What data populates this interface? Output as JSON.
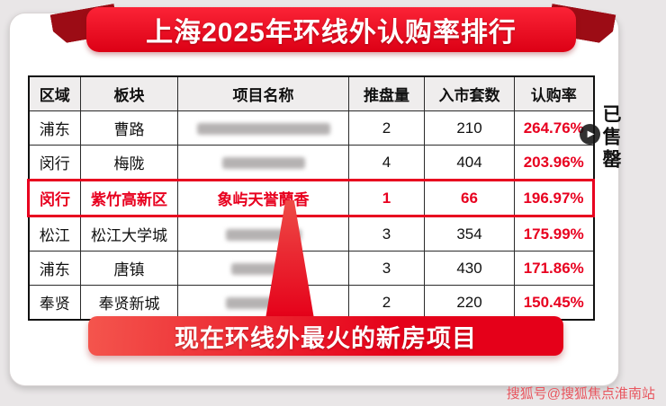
{
  "banner": {
    "title": "上海2025年环线外认购率排行"
  },
  "table": {
    "headers": [
      "区域",
      "板块",
      "项目名称",
      "推盘量",
      "入市套数",
      "认购率"
    ],
    "rows": [
      {
        "region": "浦东",
        "area": "曹路",
        "project": "",
        "redacted": true,
        "blob_width": 148,
        "launches": "2",
        "units": "210",
        "rate": "264.76%",
        "highlight": false,
        "sold_out_group": true,
        "group_last": false
      },
      {
        "region": "闵行",
        "area": "梅陇",
        "project": "",
        "redacted": true,
        "blob_width": 92,
        "launches": "4",
        "units": "404",
        "rate": "203.96%",
        "highlight": false,
        "sold_out_group": true,
        "group_last": true
      },
      {
        "region": "闵行",
        "area": "紫竹高新区",
        "project": "象屿天誉蘭香",
        "redacted": false,
        "blob_width": 0,
        "launches": "1",
        "units": "66",
        "rate": "196.97%",
        "highlight": true,
        "sold_out_group": false,
        "group_last": false
      },
      {
        "region": "松江",
        "area": "松江大学城",
        "project": "",
        "redacted": true,
        "blob_width": 84,
        "launches": "3",
        "units": "354",
        "rate": "175.99%",
        "highlight": false,
        "sold_out_group": false,
        "group_last": false
      },
      {
        "region": "浦东",
        "area": "唐镇",
        "project": "",
        "redacted": true,
        "blob_width": 72,
        "launches": "3",
        "units": "430",
        "rate": "171.86%",
        "highlight": false,
        "sold_out_group": false,
        "group_last": false
      },
      {
        "region": "奉贤",
        "area": "奉贤新城",
        "project": "",
        "redacted": true,
        "blob_width": 84,
        "launches": "2",
        "units": "220",
        "rate": "150.45%",
        "highlight": false,
        "sold_out_group": false,
        "group_last": false
      }
    ]
  },
  "chart_data": {
    "type": "table",
    "title": "上海2025年环线外认购率排行",
    "columns": [
      "区域",
      "板块",
      "项目名称",
      "推盘量",
      "入市套数",
      "认购率"
    ],
    "rows": [
      [
        "浦东",
        "曹路",
        "",
        2,
        210,
        "264.76%"
      ],
      [
        "闵行",
        "梅陇",
        "",
        4,
        404,
        "203.96%"
      ],
      [
        "闵行",
        "紫竹高新区",
        "象屿天誉蘭香",
        1,
        66,
        "196.97%"
      ],
      [
        "松江",
        "松江大学城",
        "",
        3,
        354,
        "175.99%"
      ],
      [
        "浦东",
        "唐镇",
        "",
        3,
        430,
        "171.86%"
      ],
      [
        "奉贤",
        "奉贤新城",
        "",
        2,
        220,
        "150.45%"
      ]
    ],
    "highlighted_row_index": 2,
    "sold_out_row_indices": [
      0,
      1
    ]
  },
  "side_label": "已售罄",
  "callout": {
    "text": "现在环线外最火的新房项目"
  },
  "watermark": "搜狐号@搜狐焦点淮南站",
  "icons": {
    "play_glyph": "▶"
  },
  "colors": {
    "accent_red": "#e8001f",
    "dark_red": "#9c0c15",
    "banner_gradient_top": "#fb2336",
    "banner_gradient_bottom": "#dc0015"
  }
}
